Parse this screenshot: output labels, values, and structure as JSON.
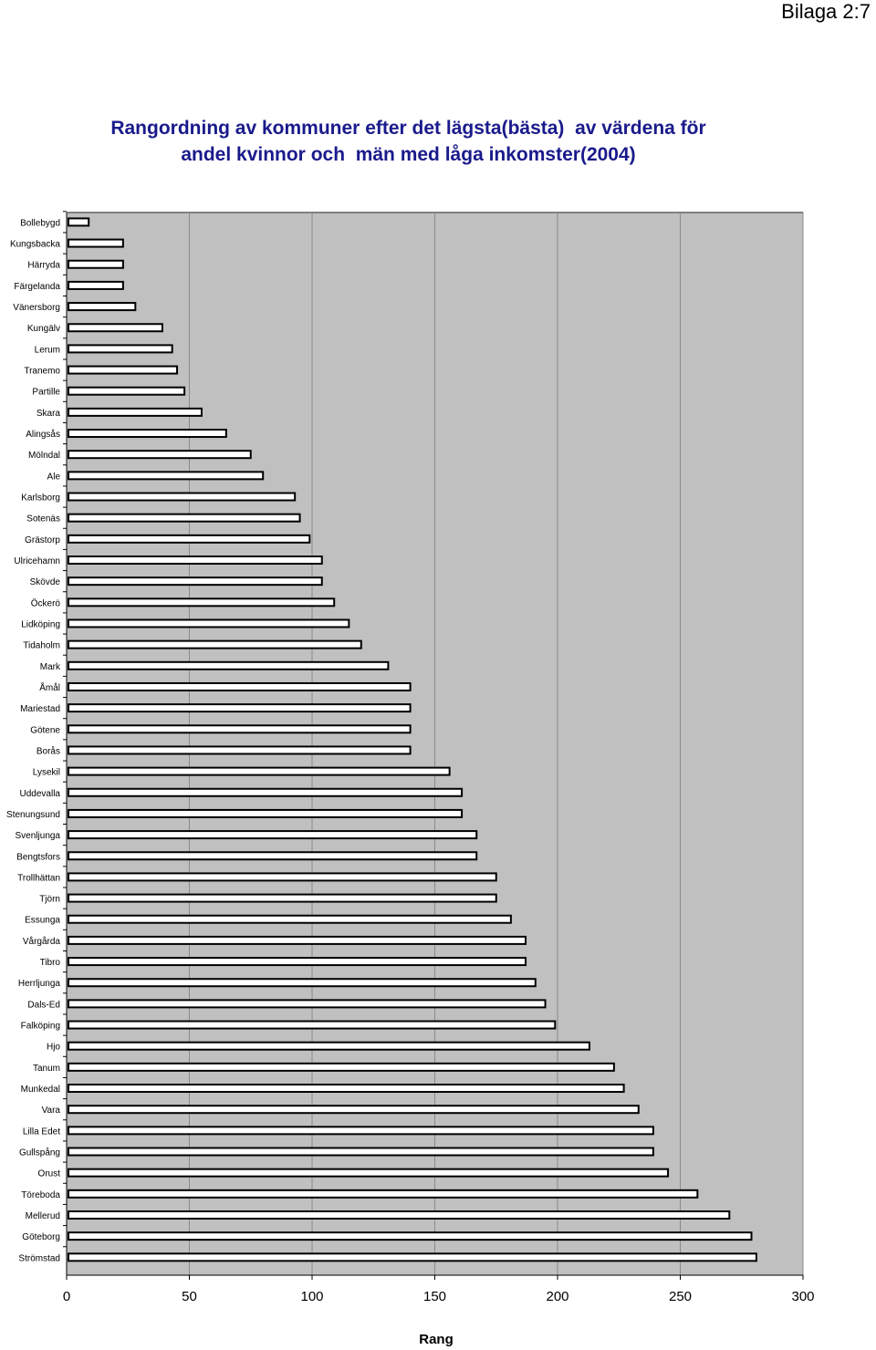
{
  "page_label": "Bilaga 2:7",
  "chart_data": {
    "type": "bar",
    "orientation": "horizontal",
    "title_lines": [
      "Rangordning av kommuner efter det lägsta(bästa)  av värdena för",
      "andel kvinnor och  män med låga inkomster(2004)"
    ],
    "xlabel": "Rang",
    "ylabel": "",
    "xlim": [
      0,
      300
    ],
    "xticks": [
      0,
      50,
      100,
      150,
      200,
      250,
      300
    ],
    "grid": "vertical",
    "legend": "none",
    "colors": {
      "plot_background": "#c0c0c0",
      "bar_fill": "#ffffff",
      "bar_stroke": "#000000",
      "gridline": "#000000"
    },
    "categories": [
      "Bollebygd",
      "Kungsbacka",
      "Härryda",
      "Färgelanda",
      "Vänersborg",
      "Kungälv",
      "Lerum",
      "Tranemo",
      "Partille",
      "Skara",
      "Alingsås",
      "Mölndal",
      "Ale",
      "Karlsborg",
      "Sotenäs",
      "Grästorp",
      "Ulricehamn",
      "Skövde",
      "Öckerö",
      "Lidköping",
      "Tidaholm",
      "Mark",
      "Åmål",
      "Mariestad",
      "Götene",
      "Borås",
      "Lysekil",
      "Uddevalla",
      "Stenungsund",
      "Svenljunga",
      "Bengtsfors",
      "Trollhättan",
      "Tjörn",
      "Essunga",
      "Vårgårda",
      "Tibro",
      "Herrljunga",
      "Dals-Ed",
      "Falköping",
      "Hjo",
      "Tanum",
      "Munkedal",
      "Vara",
      "Lilla Edet",
      "Gullspång",
      "Orust",
      "Töreboda",
      "Mellerud",
      "Göteborg",
      "Strömstad"
    ],
    "values": [
      9,
      23,
      23,
      23,
      28,
      39,
      43,
      45,
      48,
      55,
      65,
      75,
      80,
      93,
      95,
      99,
      104,
      104,
      109,
      115,
      120,
      131,
      140,
      140,
      140,
      140,
      156,
      161,
      161,
      167,
      167,
      175,
      175,
      181,
      187,
      187,
      191,
      195,
      199,
      213,
      223,
      227,
      233,
      239,
      239,
      245,
      257,
      270,
      279,
      281
    ]
  }
}
